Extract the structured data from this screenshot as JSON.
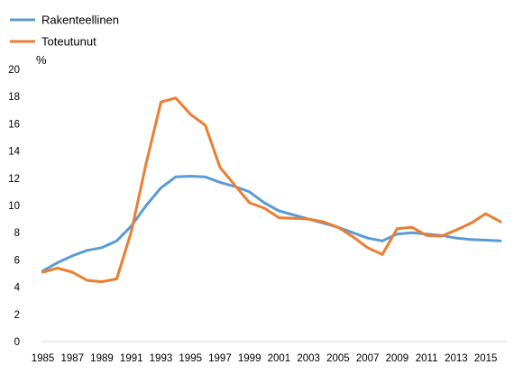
{
  "chart_data": {
    "type": "line",
    "title": "",
    "xlabel": "",
    "ylabel": "%",
    "ylim": [
      0,
      20
    ],
    "yticks": [
      0,
      2,
      4,
      6,
      8,
      10,
      12,
      14,
      16,
      18,
      20
    ],
    "xlim": [
      1985,
      2016
    ],
    "xticks": [
      1985,
      1987,
      1989,
      1991,
      1993,
      1995,
      1997,
      1999,
      2001,
      2003,
      2005,
      2007,
      2009,
      2011,
      2013,
      2015
    ],
    "grid": false,
    "legend_position": "top-left",
    "x": [
      1985,
      1986,
      1987,
      1988,
      1989,
      1990,
      1991,
      1992,
      1993,
      1994,
      1995,
      1996,
      1997,
      1998,
      1999,
      2000,
      2001,
      2002,
      2003,
      2004,
      2005,
      2006,
      2007,
      2008,
      2009,
      2010,
      2011,
      2012,
      2013,
      2014,
      2015,
      2016
    ],
    "series": [
      {
        "name": "Rakenteellinen",
        "color": "#5b9bd5",
        "values": [
          5.2,
          5.8,
          6.3,
          6.7,
          6.9,
          7.4,
          8.5,
          10.0,
          11.3,
          12.1,
          12.15,
          12.1,
          11.7,
          11.4,
          11.0,
          10.2,
          9.6,
          9.3,
          9.0,
          8.7,
          8.4,
          8.0,
          7.6,
          7.4,
          7.9,
          8.0,
          7.9,
          7.8,
          7.6,
          7.5,
          7.45,
          7.4
        ]
      },
      {
        "name": "Toteutunut",
        "color": "#ed7d31",
        "values": [
          5.1,
          5.4,
          5.1,
          4.5,
          4.4,
          4.6,
          8.1,
          13.1,
          17.6,
          17.9,
          16.7,
          15.9,
          12.8,
          11.5,
          10.2,
          9.8,
          9.1,
          9.05,
          9.0,
          8.8,
          8.4,
          7.7,
          6.9,
          6.4,
          8.3,
          8.4,
          7.8,
          7.75,
          8.2,
          8.7,
          9.4,
          8.8
        ]
      }
    ]
  }
}
